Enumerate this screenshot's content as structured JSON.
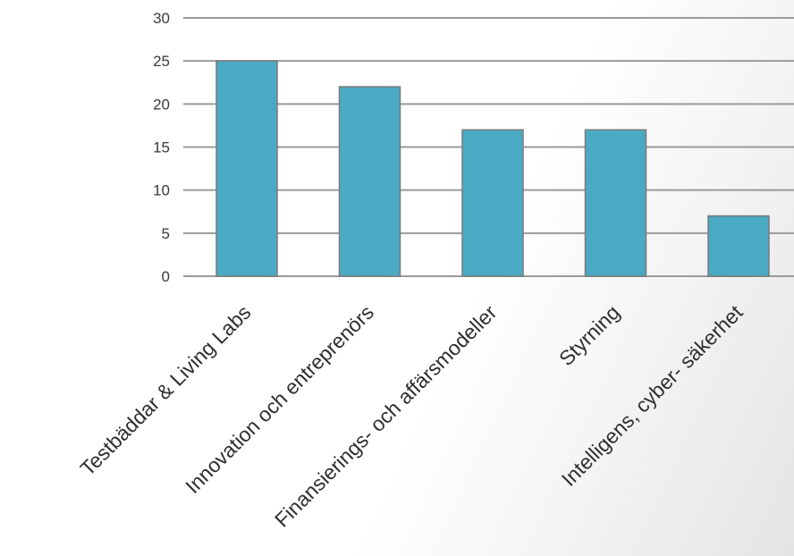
{
  "chart_data": {
    "type": "bar",
    "categories": [
      "Testbäddar & Living Labs",
      "Innovation och entreprenörs",
      "Finansierings- och affärsmodeller",
      "Styrning",
      "Intelligens, cyber- säkerhet"
    ],
    "values": [
      25,
      22,
      17,
      17,
      7
    ],
    "ylim": [
      0,
      30
    ],
    "yticks": [
      0,
      5,
      10,
      15,
      20,
      25,
      30
    ],
    "title": "",
    "xlabel": "",
    "ylabel": "",
    "grid": true,
    "legend": "none",
    "colors": {
      "bar": "#4aaac4",
      "bar_edge": "#7a7a7a",
      "grid": "#9a9a9a"
    }
  }
}
